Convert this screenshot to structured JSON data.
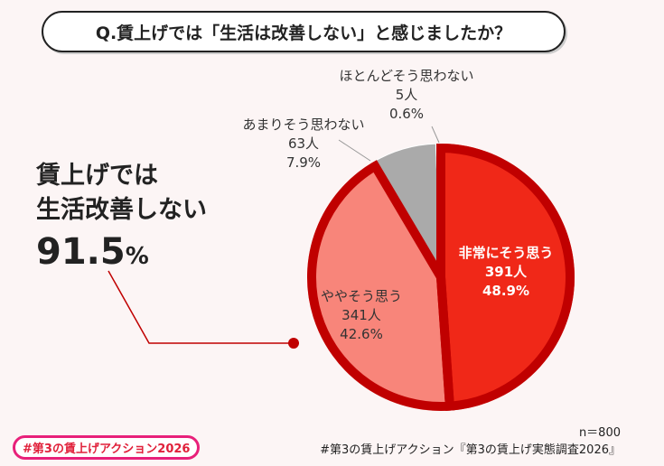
{
  "title": "Q.賃上げでは「生活は改善しない」と感じましたか？",
  "highlight": {
    "line1": "賃上げでは",
    "line2": "生活改善しない",
    "value": "91.5",
    "unit": "%"
  },
  "chart_data": {
    "type": "pie",
    "start": "top",
    "direction": "clockwise",
    "slices": [
      {
        "label": "非常にそう思う",
        "count": "391人",
        "percent": 48.9,
        "percent_label": "48.9%",
        "color": "#f02818"
      },
      {
        "label": "ややそう思う",
        "count": "341人",
        "percent": 42.6,
        "percent_label": "42.6%",
        "color": "#f8857a"
      },
      {
        "label": "あまりそう思わない",
        "count": "63人",
        "percent": 7.9,
        "percent_label": "7.9%",
        "color": "#aaaaaa"
      },
      {
        "label": "ほとんどそう思わない",
        "count": "5人",
        "percent": 0.6,
        "percent_label": "0.6%",
        "color": "#aaaaaa"
      }
    ],
    "highlight_outline_color": "#c00000"
  },
  "footer": {
    "n": "n＝800",
    "source": "#第3の賃上げアクション『第3の賃上げ実態調査2026』",
    "tag": "#第3の賃上げアクション2026"
  }
}
